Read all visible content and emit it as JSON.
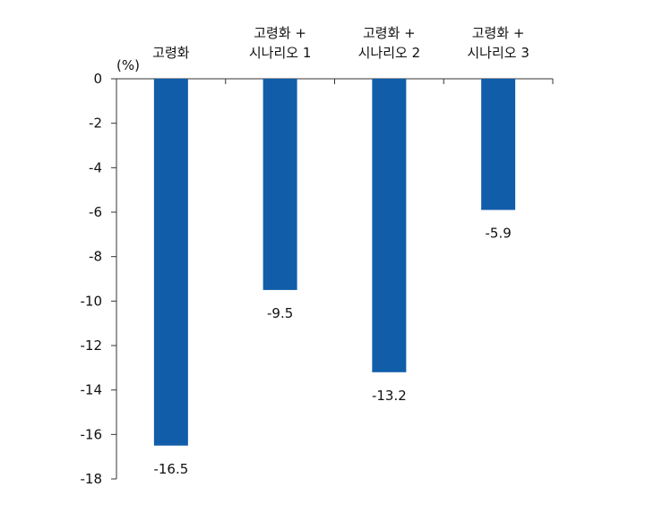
{
  "chart_data": {
    "type": "bar",
    "unit_label": "(%)",
    "categories": [
      [
        "고령화"
      ],
      [
        "고령화 +",
        "시나리오 1"
      ],
      [
        "고령화 +",
        "시나리오 2"
      ],
      [
        "고령화 +",
        "시나리오 3"
      ]
    ],
    "values": [
      -16.5,
      -9.5,
      -13.2,
      -5.9
    ],
    "data_labels": [
      "-16.5",
      "-9.5",
      "-13.2",
      "-5.9"
    ],
    "ylim": [
      -18,
      0
    ],
    "yticks": [
      0,
      -2,
      -4,
      -6,
      -8,
      -10,
      -12,
      -14,
      -16,
      -18
    ],
    "bar_color": "#115DAA",
    "axis_color": "#333333",
    "grid": false,
    "legend": "none"
  }
}
